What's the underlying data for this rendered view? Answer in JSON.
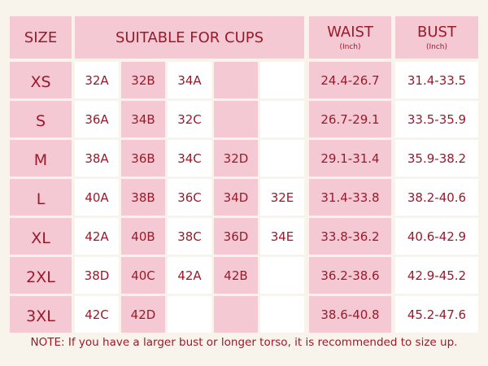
{
  "colors": {
    "text": "#9a1a2b",
    "pink": "#f4c9d3",
    "white": "#ffffff",
    "background": "#f8f4ec"
  },
  "header": {
    "size": "SIZE",
    "cups": "SUITABLE FOR CUPS",
    "waist": "WAIST",
    "waist_unit": "(Inch)",
    "bust": "BUST",
    "bust_unit": "(Inch)"
  },
  "rows": [
    {
      "size": "XS",
      "cups": [
        "32A",
        "32B",
        "34A",
        "",
        ""
      ],
      "waist": "24.4-26.7",
      "bust": "31.4-33.5"
    },
    {
      "size": "S",
      "cups": [
        "36A",
        "34B",
        "32C",
        "",
        ""
      ],
      "waist": "26.7-29.1",
      "bust": "33.5-35.9"
    },
    {
      "size": "M",
      "cups": [
        "38A",
        "36B",
        "34C",
        "32D",
        ""
      ],
      "waist": "29.1-31.4",
      "bust": "35.9-38.2"
    },
    {
      "size": "L",
      "cups": [
        "40A",
        "38B",
        "36C",
        "34D",
        "32E"
      ],
      "waist": "31.4-33.8",
      "bust": "38.2-40.6"
    },
    {
      "size": "XL",
      "cups": [
        "42A",
        "40B",
        "38C",
        "36D",
        "34E"
      ],
      "waist": "33.8-36.2",
      "bust": "40.6-42.9"
    },
    {
      "size": "2XL",
      "cups": [
        "38D",
        "40C",
        "42A",
        "42B",
        ""
      ],
      "waist": "36.2-38.6",
      "bust": "42.9-45.2"
    },
    {
      "size": "3XL",
      "cups": [
        "42C",
        "42D",
        "",
        "",
        ""
      ],
      "waist": "38.6-40.8",
      "bust": "45.2-47.6"
    }
  ],
  "note": "NOTE: If you have a larger bust or longer torso, it is recommended to size up."
}
